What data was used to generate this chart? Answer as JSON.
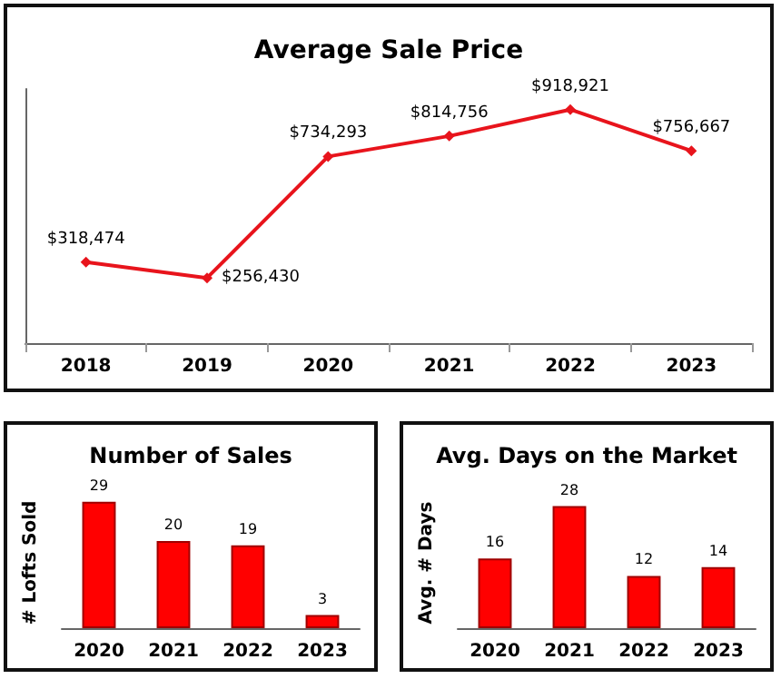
{
  "chart_data": [
    {
      "type": "line",
      "title": "Average Sale Price",
      "categories": [
        "2018",
        "2019",
        "2020",
        "2021",
        "2022",
        "2023"
      ],
      "series": [
        {
          "color": "#e8141c",
          "values": [
            318474,
            256430,
            734293,
            814756,
            918921,
            756667
          ],
          "value_labels": [
            "$318,474",
            "$256,430",
            "$734,293",
            "$814,756",
            "$918,921",
            "$756,667"
          ]
        }
      ],
      "marker": "diamond",
      "grid": false
    },
    {
      "type": "bar",
      "title": "Number of Sales",
      "ylabel": "# Lofts Sold",
      "categories": [
        "2020",
        "2021",
        "2022",
        "2023"
      ],
      "series": [
        {
          "color": "#ff0000",
          "values": [
            29,
            20,
            19,
            3
          ]
        }
      ],
      "data_labels": true,
      "grid": false
    },
    {
      "type": "bar",
      "title": "Avg. Days on the Market",
      "ylabel": "Avg. # Days",
      "categories": [
        "2020",
        "2021",
        "2022",
        "2023"
      ],
      "series": [
        {
          "color": "#ff0000",
          "values": [
            16,
            28,
            12,
            14
          ]
        }
      ],
      "data_labels": true,
      "grid": false
    }
  ]
}
